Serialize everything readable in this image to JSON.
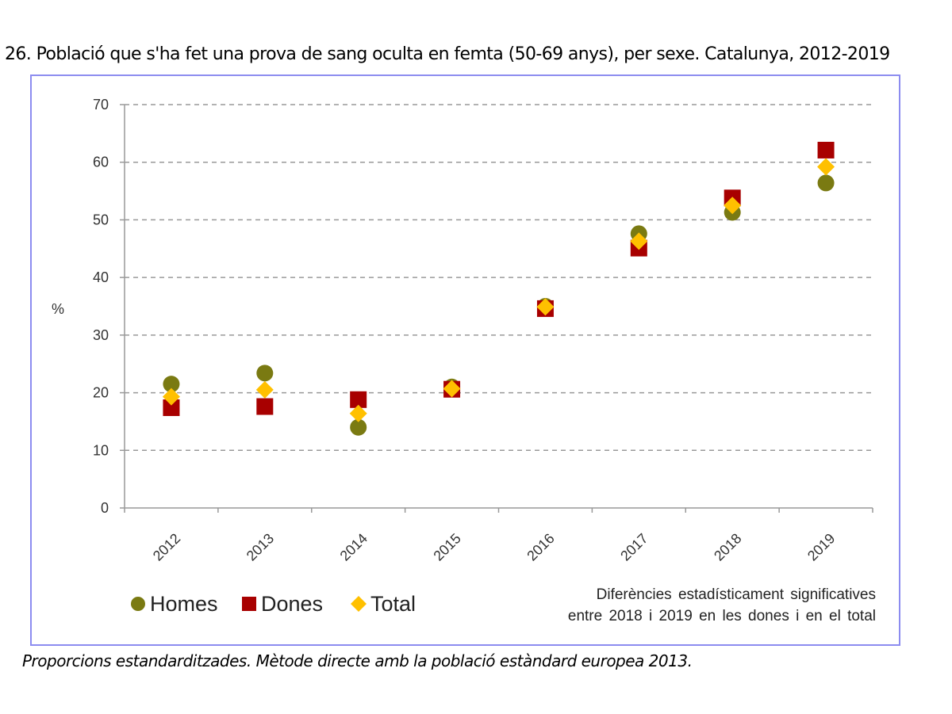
{
  "chart_data": {
    "type": "scatter",
    "title": "26. Població que s'ha fet una prova de sang oculta en femta (50-69 anys), per sexe. Catalunya, 2012-2019",
    "xlabel": "",
    "ylabel": "%",
    "ylim": [
      0,
      70
    ],
    "yticks": [
      "0",
      "10",
      "20",
      "30",
      "40",
      "50",
      "60",
      "70"
    ],
    "grid": true,
    "categories": [
      "2012",
      "2013",
      "2014",
      "2015",
      "2016",
      "2017",
      "2018",
      "2019"
    ],
    "series": [
      {
        "name": "Homes",
        "marker": "circle",
        "color": "#7a7a12",
        "values": [
          21.5,
          23.4,
          14.0,
          21.0,
          35.0,
          47.6,
          51.3,
          56.4
        ]
      },
      {
        "name": "Dones",
        "marker": "square",
        "color": "#a80000",
        "values": [
          17.4,
          17.6,
          18.8,
          20.6,
          34.6,
          45.1,
          53.8,
          62.1
        ]
      },
      {
        "name": "Total",
        "marker": "diamond",
        "color": "#ffc000",
        "values": [
          19.3,
          20.5,
          16.4,
          20.7,
          34.9,
          46.3,
          52.5,
          59.2
        ]
      }
    ],
    "legend_position": "bottom-left",
    "annotation": [
      "Diferències estadísticament significatives",
      "entre 2018 i 2019 en les dones i en el total"
    ]
  },
  "caption": "Proporcions estandarditzades. Mètode directe amb la població estàndard europea 2013."
}
